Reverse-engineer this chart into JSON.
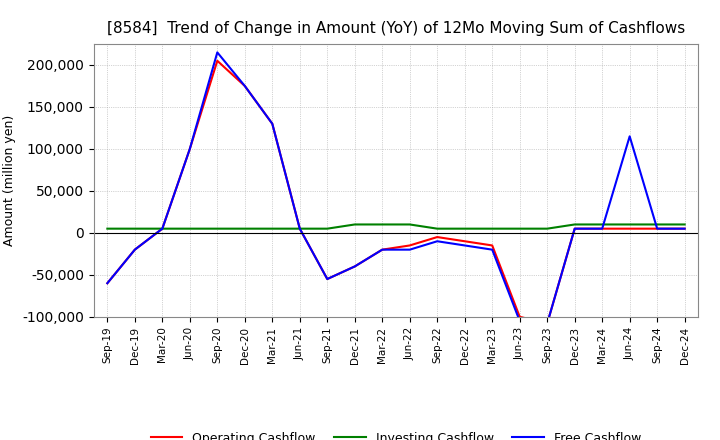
{
  "title": "[8584]  Trend of Change in Amount (YoY) of 12Mo Moving Sum of Cashflows",
  "ylabel": "Amount (million yen)",
  "x_labels": [
    "Sep-19",
    "Dec-19",
    "Mar-20",
    "Jun-20",
    "Sep-20",
    "Dec-20",
    "Mar-21",
    "Jun-21",
    "Sep-21",
    "Dec-21",
    "Mar-22",
    "Jun-22",
    "Sep-22",
    "Dec-22",
    "Mar-23",
    "Jun-23",
    "Sep-23",
    "Dec-23",
    "Mar-24",
    "Jun-24",
    "Sep-24",
    "Dec-24"
  ],
  "operating": [
    -60000,
    -20000,
    5000,
    100000,
    205000,
    175000,
    130000,
    5000,
    -55000,
    -40000,
    -20000,
    -15000,
    -5000,
    -10000,
    -15000,
    -100000,
    -108000,
    5000,
    5000,
    5000,
    5000,
    5000
  ],
  "investing": [
    5000,
    5000,
    5000,
    5000,
    5000,
    5000,
    5000,
    5000,
    5000,
    10000,
    10000,
    10000,
    5000,
    5000,
    5000,
    5000,
    5000,
    10000,
    10000,
    10000,
    10000,
    10000
  ],
  "free": [
    -60000,
    -20000,
    5000,
    100000,
    215000,
    175000,
    130000,
    5000,
    -55000,
    -40000,
    -20000,
    -20000,
    -10000,
    -15000,
    -20000,
    -105000,
    -108000,
    5000,
    5000,
    115000,
    5000,
    5000
  ],
  "operating_color": "#ff0000",
  "investing_color": "#008000",
  "free_color": "#0000ff",
  "ylim": [
    -100000,
    225000
  ],
  "yticks": [
    -100000,
    -50000,
    0,
    50000,
    100000,
    150000,
    200000
  ],
  "background_color": "#ffffff",
  "grid_color": "#aaaaaa",
  "title_fontsize": 11,
  "legend_labels": [
    "Operating Cashflow",
    "Investing Cashflow",
    "Free Cashflow"
  ]
}
